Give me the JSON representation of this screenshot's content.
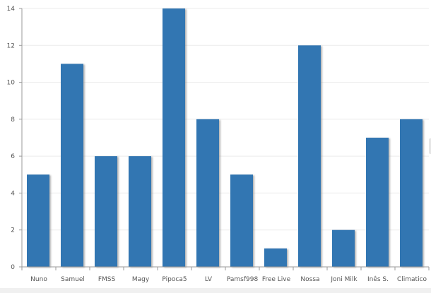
{
  "chart_data": {
    "type": "bar",
    "categories": [
      "Nuno",
      "Samuel",
      "FMSS",
      "Magy",
      "Pipoca5",
      "LV",
      "Pamsf998",
      "Free Live",
      "Nossa",
      "Joni Milk",
      "Inês S.",
      "Climatico"
    ],
    "values": [
      5,
      11,
      6,
      6,
      14,
      8,
      5,
      1,
      12,
      2,
      7,
      8
    ],
    "title": "",
    "xlabel": "",
    "ylabel": "",
    "ylim": [
      0,
      14
    ],
    "yticks": [
      0,
      2,
      4,
      6,
      8,
      10,
      12,
      14
    ],
    "grid": true,
    "colors": {
      "bar": "#3076b2",
      "bar_shadow": "#8a8a8a",
      "grid": "#ebebeb",
      "axis": "#9a9a9a"
    }
  }
}
